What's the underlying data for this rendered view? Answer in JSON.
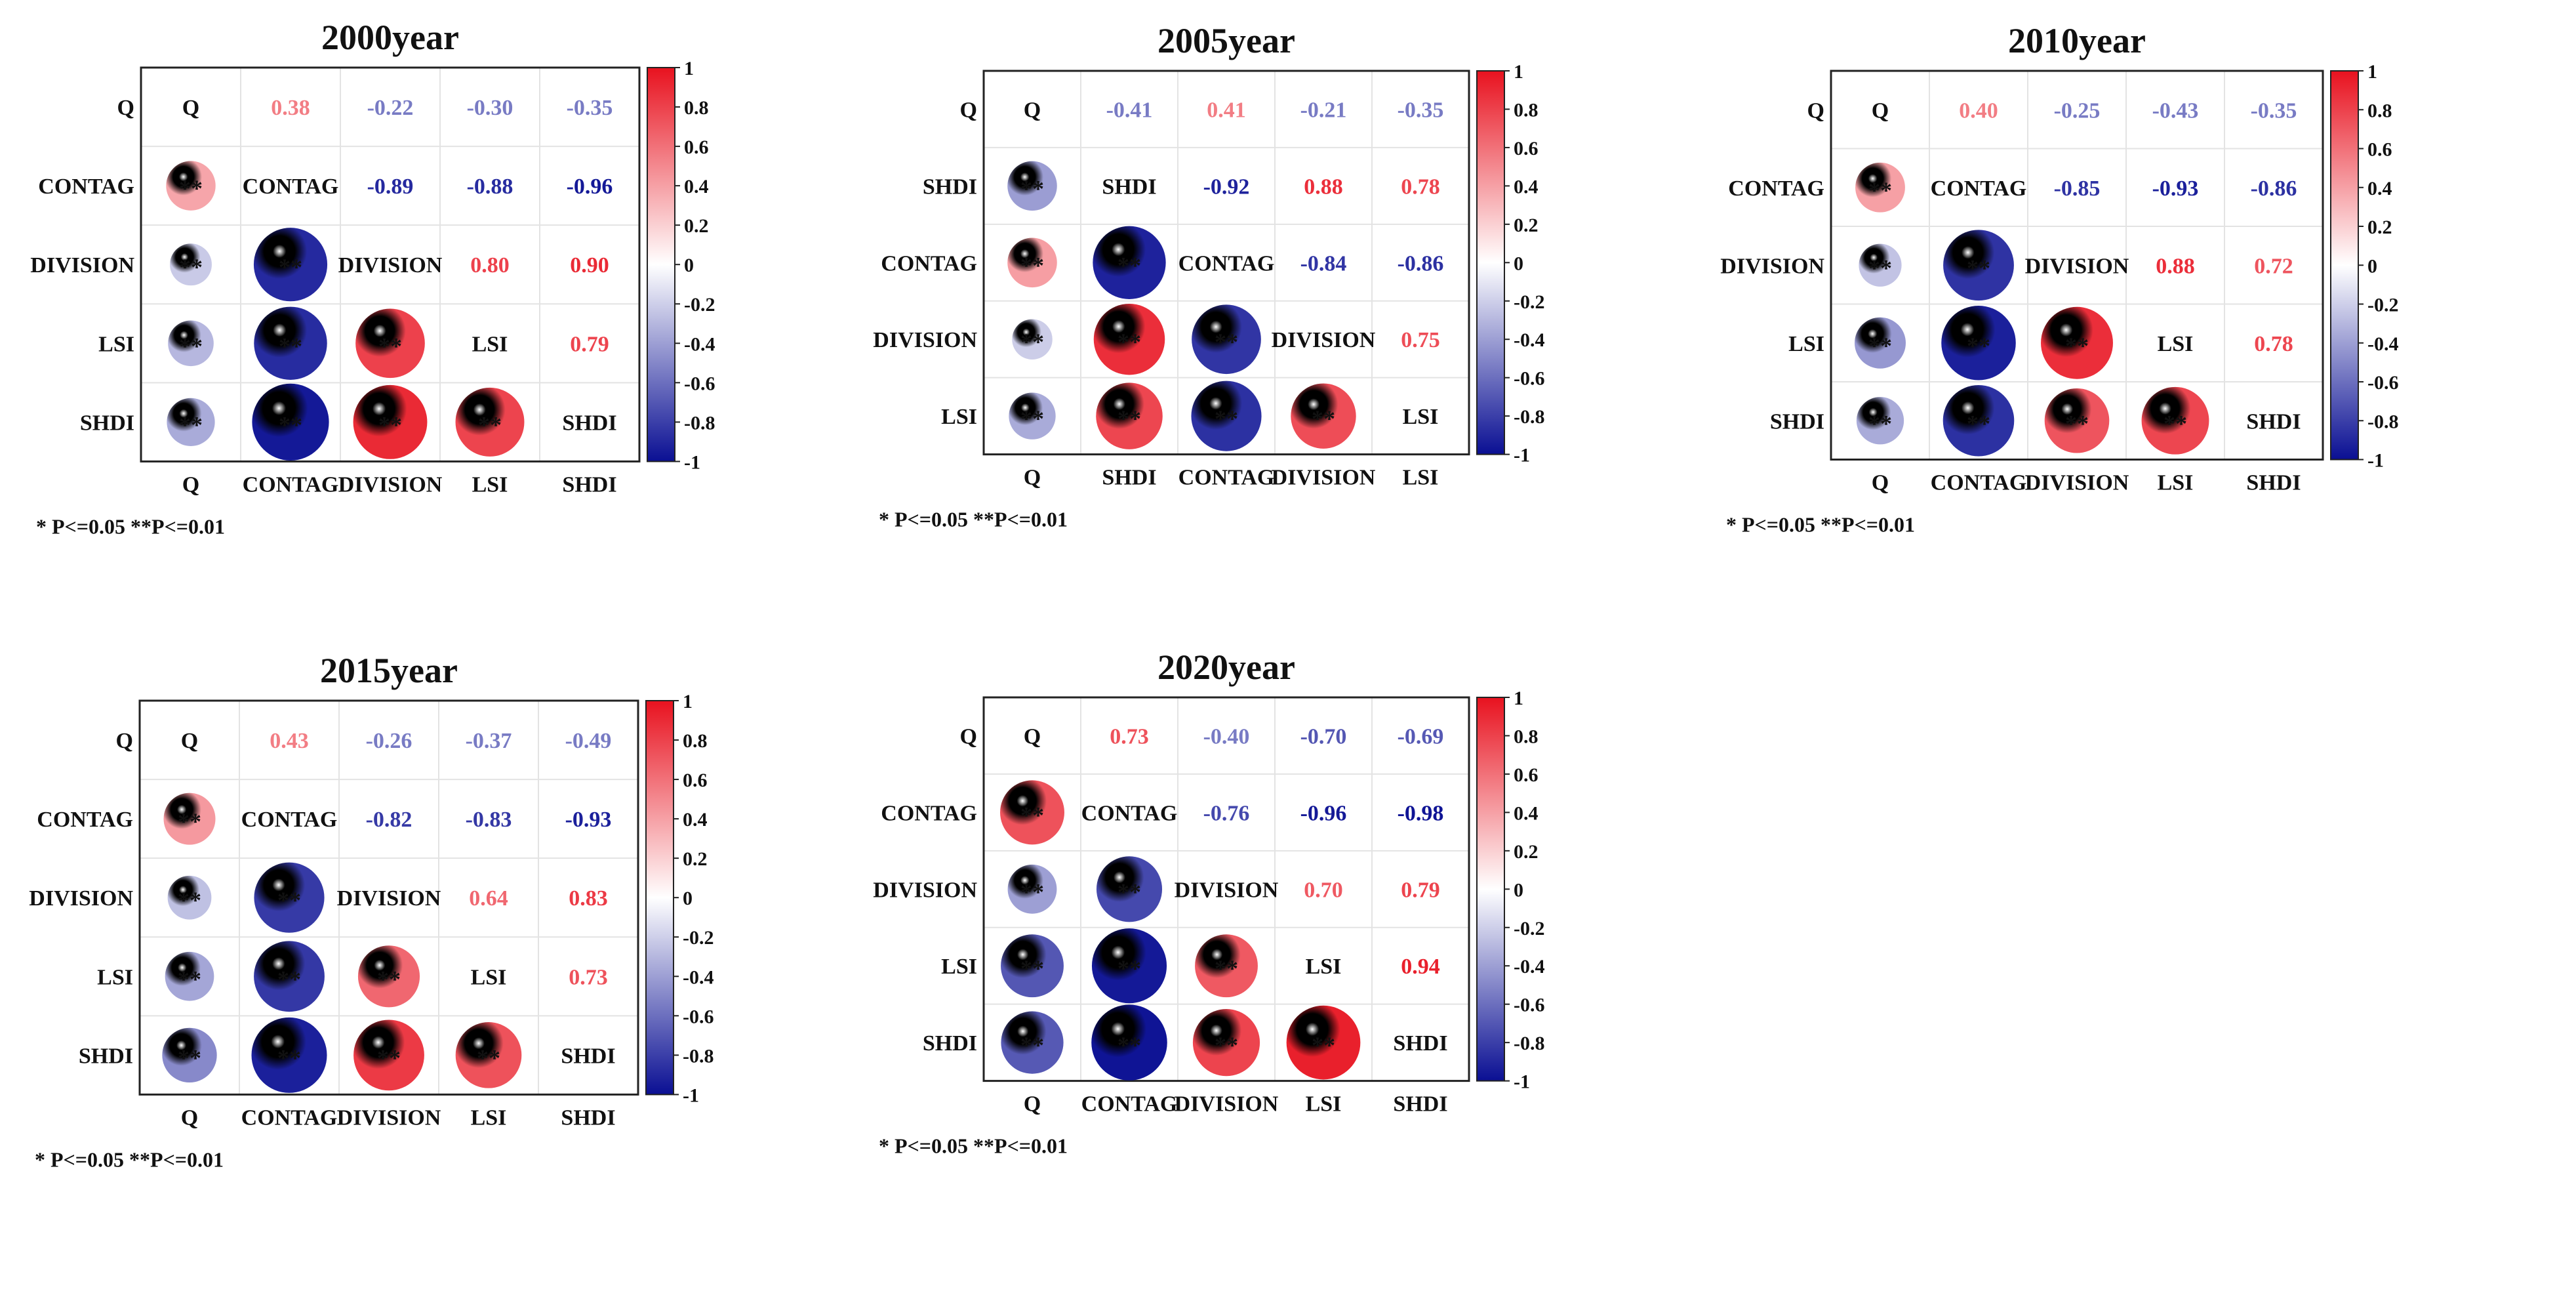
{
  "figure": {
    "colorbar_ticks": [
      "1",
      "0.8",
      "0.6",
      "0.4",
      "0.2",
      "0",
      "-0.2",
      "-0.4",
      "-0.6",
      "-0.8",
      "-1"
    ],
    "significance_marker": "**",
    "colors": {
      "positive": "#e8121f",
      "negative": "#0a0f93",
      "zero": "#ffffff",
      "grid": "#e3e3e3"
    }
  },
  "chart_data": [
    {
      "type": "heatmap",
      "title": "2000year",
      "variables": [
        "Q",
        "CONTAG",
        "DIVISION",
        "LSI",
        "SHDI"
      ],
      "correlations": [
        [
          1,
          0.38,
          -0.22,
          -0.3,
          -0.35
        ],
        [
          0.38,
          1,
          -0.89,
          -0.88,
          -0.96
        ],
        [
          -0.22,
          -0.89,
          1,
          0.8,
          0.9
        ],
        [
          -0.3,
          -0.88,
          0.8,
          1,
          0.79
        ],
        [
          -0.35,
          -0.96,
          0.9,
          0.79,
          1
        ]
      ],
      "upper_labels": [
        [
          "0.38",
          "-0.22",
          "-0.30",
          "-0.35"
        ],
        [
          "-0.89",
          "-0.88",
          "-0.96"
        ],
        [
          "0.80",
          "0.90"
        ],
        [
          "0.79"
        ]
      ],
      "significance": "**",
      "footnote": "* P<=0.05 **P<=0.01",
      "colorbar_range": [
        -1,
        1
      ]
    },
    {
      "type": "heatmap",
      "title": "2005year",
      "variables": [
        "Q",
        "SHDI",
        "CONTAG",
        "DIVISION",
        "LSI"
      ],
      "correlations": [
        [
          1,
          -0.41,
          0.41,
          -0.21,
          -0.35
        ],
        [
          -0.41,
          1,
          -0.92,
          0.88,
          0.78
        ],
        [
          0.41,
          -0.92,
          1,
          -0.84,
          -0.86
        ],
        [
          -0.21,
          0.88,
          -0.84,
          1,
          0.75
        ],
        [
          -0.35,
          0.78,
          -0.86,
          0.75,
          1
        ]
      ],
      "upper_labels": [
        [
          "-0.41",
          "0.41",
          "-0.21",
          "-0.35"
        ],
        [
          "-0.92",
          "0.88",
          "0.78"
        ],
        [
          "-0.84",
          "-0.86"
        ],
        [
          "0.75"
        ]
      ],
      "significance": "**",
      "footnote": "* P<=0.05 **P<=0.01",
      "colorbar_range": [
        -1,
        1
      ]
    },
    {
      "type": "heatmap",
      "title": "2010year",
      "variables": [
        "Q",
        "CONTAG",
        "DIVISION",
        "LSI",
        "SHDI"
      ],
      "correlations": [
        [
          1,
          0.4,
          -0.25,
          -0.43,
          -0.35
        ],
        [
          0.4,
          1,
          -0.85,
          -0.93,
          -0.86
        ],
        [
          -0.25,
          -0.85,
          1,
          0.88,
          0.72
        ],
        [
          -0.43,
          -0.93,
          0.88,
          1,
          0.78
        ],
        [
          -0.35,
          -0.86,
          0.72,
          0.78,
          1
        ]
      ],
      "upper_labels": [
        [
          "0.40",
          "-0.25",
          "-0.43",
          "-0.35"
        ],
        [
          "-0.85",
          "-0.93",
          "-0.86"
        ],
        [
          "0.88",
          "0.72"
        ],
        [
          "0.78"
        ]
      ],
      "significance": "**",
      "footnote": "* P<=0.05 **P<=0.01",
      "colorbar_range": [
        -1,
        1
      ]
    },
    {
      "type": "heatmap",
      "title": "2015year",
      "variables": [
        "Q",
        "CONTAG",
        "DIVISION",
        "LSI",
        "SHDI"
      ],
      "correlations": [
        [
          1,
          0.43,
          -0.26,
          -0.37,
          -0.49
        ],
        [
          0.43,
          1,
          -0.82,
          -0.83,
          -0.93
        ],
        [
          -0.26,
          -0.82,
          1,
          0.64,
          0.83
        ],
        [
          -0.37,
          -0.83,
          0.64,
          1,
          0.73
        ],
        [
          -0.49,
          -0.93,
          0.83,
          0.73,
          1
        ]
      ],
      "upper_labels": [
        [
          "0.43",
          "-0.26",
          "-0.37",
          "-0.49"
        ],
        [
          "-0.82",
          "-0.83",
          "-0.93"
        ],
        [
          "0.64",
          "0.83"
        ],
        [
          "0.73"
        ]
      ],
      "significance": "**",
      "footnote": "* P<=0.05 **P<=0.01",
      "colorbar_range": [
        -1,
        1
      ]
    },
    {
      "type": "heatmap",
      "title": "2020year",
      "variables": [
        "Q",
        "CONTAG",
        "DIVISION",
        "LSI",
        "SHDI"
      ],
      "correlations": [
        [
          1,
          0.73,
          -0.4,
          -0.7,
          -0.69
        ],
        [
          0.73,
          1,
          -0.76,
          -0.96,
          -0.98
        ],
        [
          -0.4,
          -0.76,
          1,
          0.7,
          0.79
        ],
        [
          -0.7,
          -0.96,
          0.7,
          1,
          0.94
        ],
        [
          -0.69,
          -0.98,
          0.79,
          0.94,
          1
        ]
      ],
      "upper_labels": [
        [
          "0.73",
          "-0.40",
          "-0.70",
          "-0.69"
        ],
        [
          "-0.76",
          "-0.96",
          "-0.98"
        ],
        [
          "0.70",
          "0.79"
        ],
        [
          "0.94"
        ]
      ],
      "significance": "**",
      "footnote": "* P<=0.05 **P<=0.01",
      "colorbar_range": [
        -1,
        1
      ]
    }
  ]
}
